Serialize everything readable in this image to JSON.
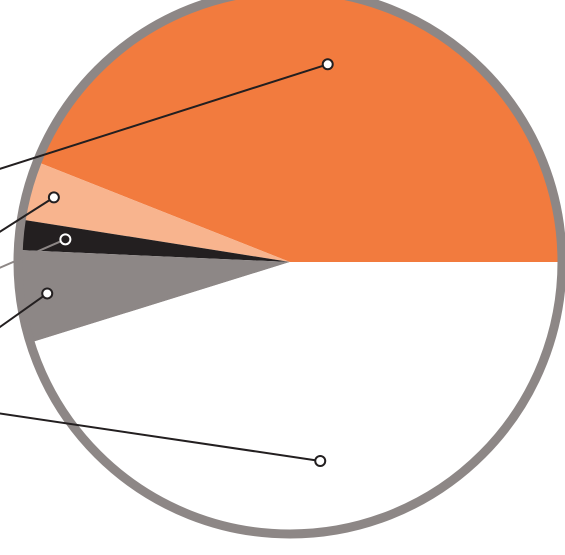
{
  "chart_data": {
    "type": "pie",
    "title": "",
    "slices": [
      {
        "name": "",
        "value": 44,
        "color": "#F27B3E"
      },
      {
        "name": "",
        "value": 3.5,
        "color": "#F8B48E"
      },
      {
        "name": "",
        "value": 1.8,
        "color": "#231F20"
      },
      {
        "name": "",
        "value": 5.5,
        "color": "#8D8786"
      },
      {
        "name": "",
        "value": 45.2,
        "color": "#FFFFFF"
      }
    ],
    "ring_color": "#8D8786",
    "leader_color": "#231F20",
    "leader_highlight_color": "#8D8786"
  }
}
